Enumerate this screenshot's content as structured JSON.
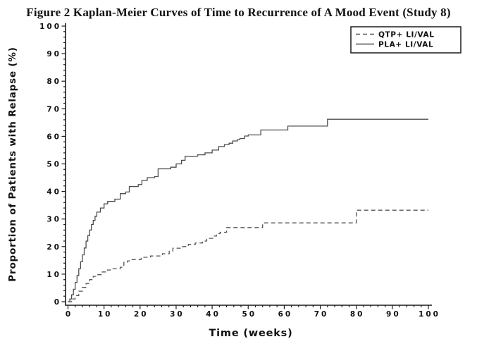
{
  "title": "Figure 2 Kaplan-Meier Curves of Time to Recurrence of A Mood Event (Study 8)",
  "colors": {
    "axis": "#1a1a1a",
    "text": "#111111",
    "curve_solid": "#4d4d4d",
    "curve_dashed": "#555555",
    "background": "#ffffff"
  },
  "chart_data": {
    "type": "line",
    "subtype": "kaplan-meier-step",
    "title": "Figure 2 Kaplan-Meier Curves of Time to Recurrence of A Mood Event (Study 8)",
    "xlabel": "Time (weeks)",
    "ylabel": "Proportion of Patients with Relapse (%)",
    "xlim": [
      0,
      100
    ],
    "ylim": [
      0,
      100
    ],
    "x_ticks": [
      0,
      10,
      20,
      30,
      40,
      50,
      60,
      70,
      80,
      90,
      100
    ],
    "y_ticks": [
      0,
      10,
      20,
      30,
      40,
      50,
      60,
      70,
      80,
      90,
      100
    ],
    "x_minor_step": 2,
    "y_minor_step": 2,
    "grid": false,
    "legend": {
      "position": "top-right",
      "entries": [
        {
          "label": "QTP+ LI/VAL",
          "style": "dashed"
        },
        {
          "label": "PLA+ LI/VAL",
          "style": "solid"
        }
      ]
    },
    "series": [
      {
        "name": "QTP+ LI/VAL",
        "style": "dashed",
        "points": [
          [
            0,
            0
          ],
          [
            1,
            1
          ],
          [
            2,
            2.2
          ],
          [
            3,
            3.8
          ],
          [
            4,
            5.2
          ],
          [
            5,
            6.6
          ],
          [
            6,
            8
          ],
          [
            7,
            9.2
          ],
          [
            8,
            9.8
          ],
          [
            9.5,
            10.8
          ],
          [
            11,
            11.5
          ],
          [
            12.5,
            12
          ],
          [
            14.5,
            12.5
          ],
          [
            15.5,
            14.3
          ],
          [
            16.5,
            14.8
          ],
          [
            17.8,
            15.3
          ],
          [
            20.3,
            16.1
          ],
          [
            22.9,
            16.6
          ],
          [
            26.2,
            17.4
          ],
          [
            28.1,
            18.3
          ],
          [
            29.1,
            19.4
          ],
          [
            31.4,
            20
          ],
          [
            33.4,
            20.8
          ],
          [
            35.3,
            21.3
          ],
          [
            37.3,
            22
          ],
          [
            38.5,
            23
          ],
          [
            40.4,
            23.8
          ],
          [
            41.2,
            24.7
          ],
          [
            42.2,
            25.2
          ],
          [
            44,
            26.9
          ],
          [
            54,
            28.6
          ],
          [
            80,
            33.2
          ],
          [
            100,
            33.2
          ]
        ]
      },
      {
        "name": "PLA+ LI/VAL",
        "style": "solid",
        "points": [
          [
            0,
            0
          ],
          [
            0.5,
            1
          ],
          [
            1,
            2.5
          ],
          [
            1.5,
            4.5
          ],
          [
            2,
            7
          ],
          [
            2.5,
            9.5
          ],
          [
            3,
            12
          ],
          [
            3.5,
            14.5
          ],
          [
            4,
            17
          ],
          [
            4.5,
            19.5
          ],
          [
            5,
            22
          ],
          [
            5.5,
            24
          ],
          [
            6,
            26
          ],
          [
            6.5,
            28
          ],
          [
            7,
            29.5
          ],
          [
            7.5,
            31
          ],
          [
            8,
            32.5
          ],
          [
            9,
            34
          ],
          [
            10,
            35.5
          ],
          [
            11,
            36.4
          ],
          [
            13,
            37.2
          ],
          [
            14.5,
            39.2
          ],
          [
            16,
            39.8
          ],
          [
            17,
            41.8
          ],
          [
            19.5,
            42.5
          ],
          [
            20.5,
            44
          ],
          [
            22,
            45
          ],
          [
            24,
            45.4
          ],
          [
            25,
            48.2
          ],
          [
            28.5,
            48.8
          ],
          [
            30,
            50
          ],
          [
            31.5,
            51.3
          ],
          [
            32.5,
            52.8
          ],
          [
            36,
            53.3
          ],
          [
            38,
            54
          ],
          [
            40,
            55
          ],
          [
            41.8,
            56.3
          ],
          [
            43.4,
            57
          ],
          [
            44.7,
            57.5
          ],
          [
            45.7,
            58.3
          ],
          [
            47,
            58.8
          ],
          [
            47.7,
            59.2
          ],
          [
            49,
            60.1
          ],
          [
            50,
            60.5
          ],
          [
            53.5,
            62.3
          ],
          [
            61,
            63.7
          ],
          [
            72,
            66.2
          ],
          [
            100,
            66.2
          ]
        ]
      }
    ]
  }
}
